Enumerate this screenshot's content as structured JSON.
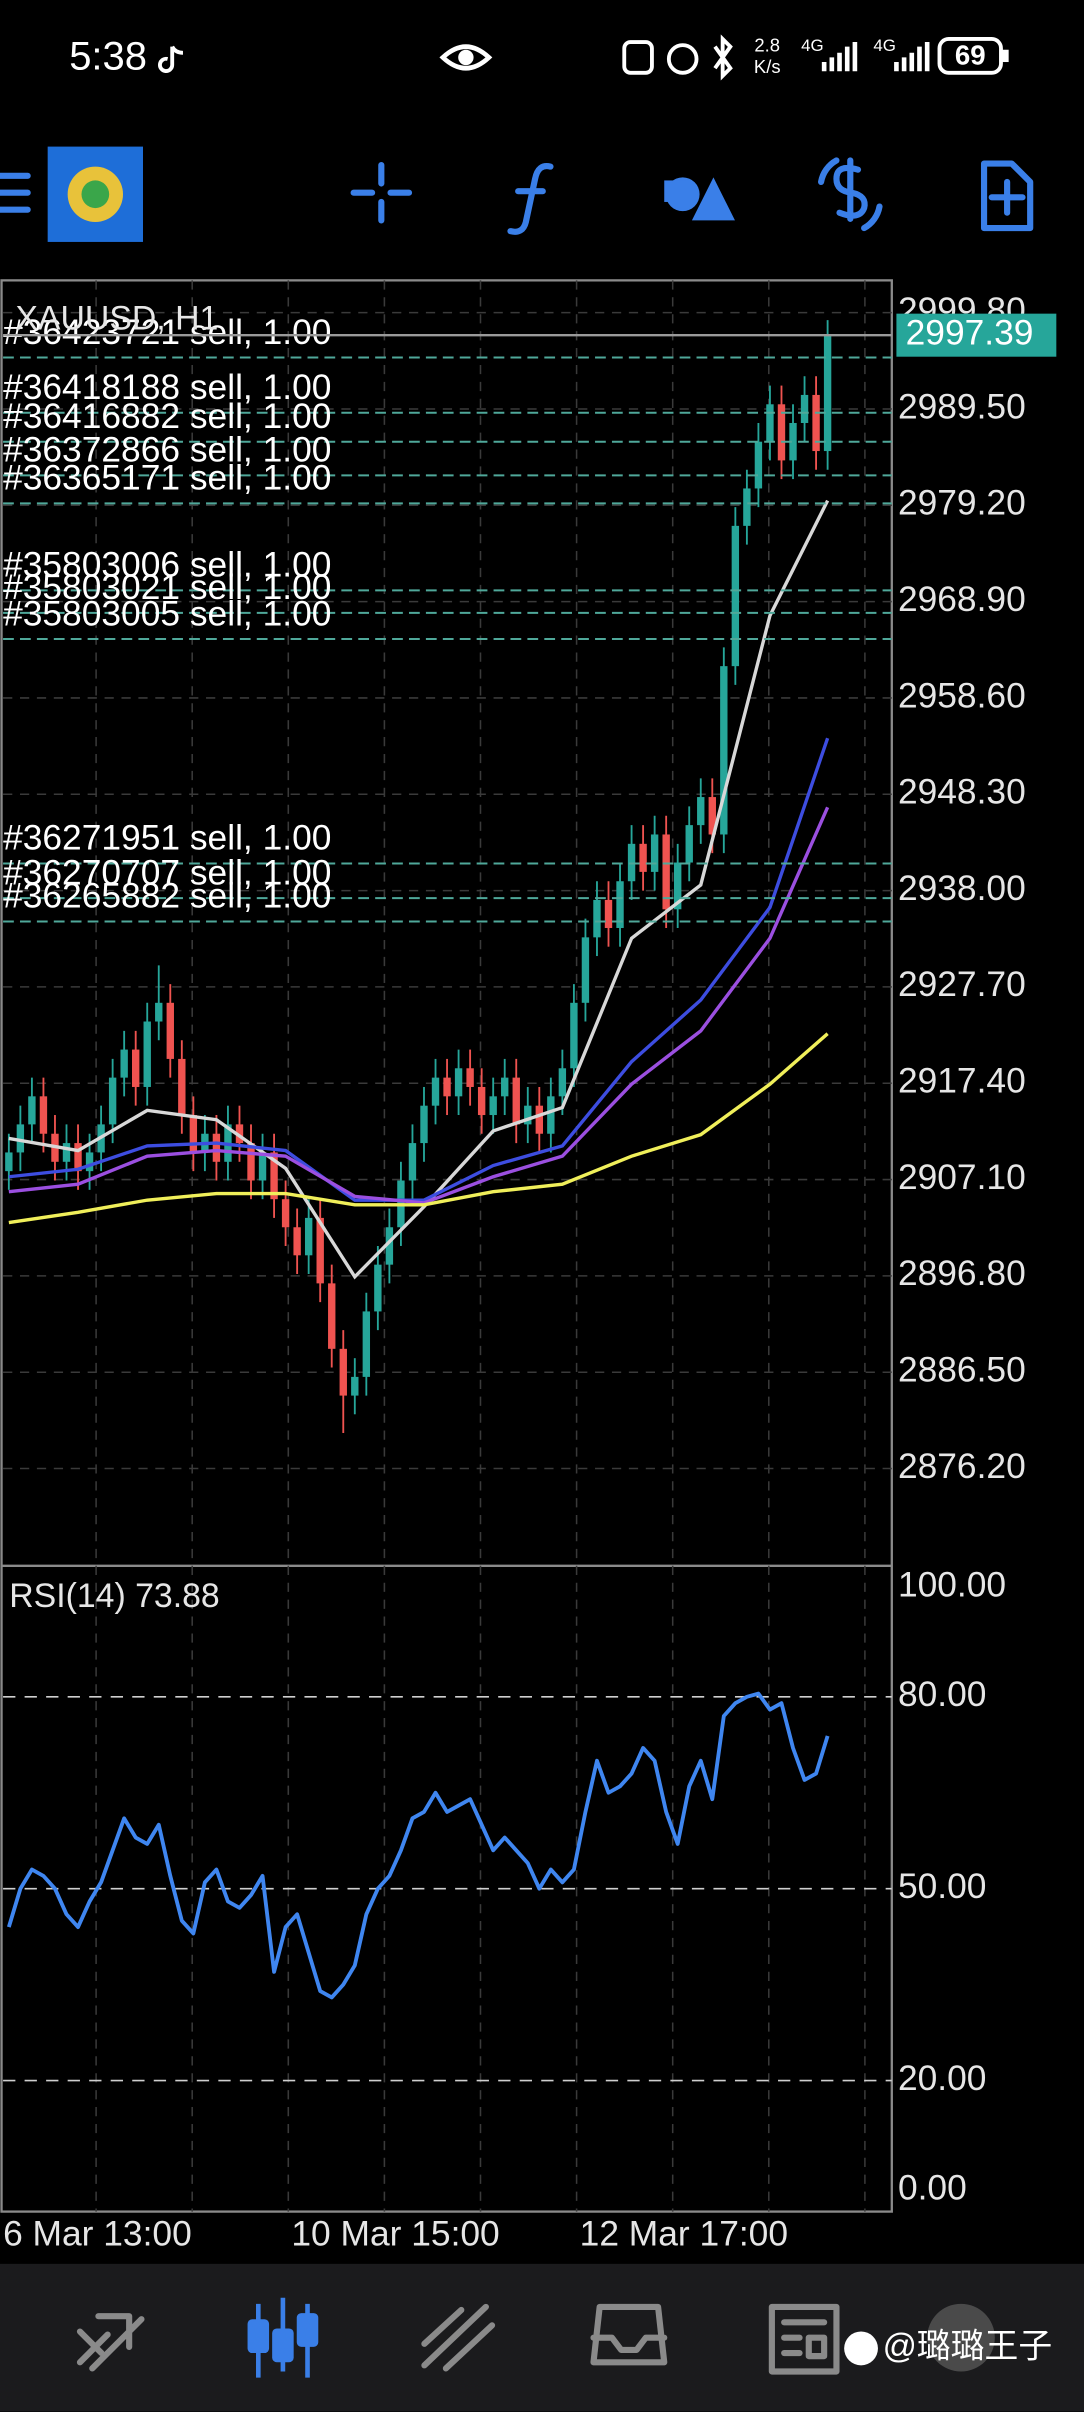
{
  "status_bar": {
    "time": "5:38",
    "speed": "2.8",
    "speed_unit": "K/s",
    "network_1": "4G",
    "network_2": "4G",
    "battery": "69"
  },
  "chart_data": [
    {
      "type": "candlestick",
      "title": "XAUUSD, H1",
      "categories": [
        "6 Mar 13:00",
        null,
        null,
        null,
        null,
        null,
        null,
        null,
        null,
        null,
        null,
        null,
        null,
        null,
        null,
        null,
        null,
        null,
        null,
        null,
        null,
        null,
        null,
        null,
        null,
        "10 Mar 15:00",
        null,
        null,
        null,
        null,
        null,
        null,
        null,
        null,
        null,
        null,
        null,
        null,
        null,
        null,
        null,
        null,
        null,
        null,
        null,
        null,
        null,
        null,
        null,
        null,
        "12 Mar 17:00",
        null,
        null,
        null,
        null,
        null,
        null,
        null,
        null,
        null,
        null,
        null,
        null,
        null,
        null,
        null,
        null,
        null,
        null,
        null,
        null,
        null
      ],
      "open": [
        2908,
        2910,
        2913,
        2916,
        2912,
        2909,
        2911,
        2908,
        2910,
        2913,
        2918,
        2921,
        2917,
        2924,
        2926,
        2920,
        2914,
        2910,
        2912,
        2909,
        2913,
        2911,
        2907,
        2910,
        2905,
        2902,
        2899,
        2903,
        2896,
        2889,
        2884,
        2886,
        2893,
        2898,
        2902,
        2907,
        2911,
        2915,
        2918,
        2916,
        2919,
        2917,
        2914,
        2916,
        2918,
        2913,
        2915,
        2912,
        2916,
        2919,
        2926,
        2933,
        2937,
        2934,
        2939,
        2943,
        2940,
        2944,
        2936,
        2941,
        2945,
        2948,
        2944,
        2962,
        2977,
        2981,
        2986,
        2990,
        2984,
        2988,
        2991,
        2985
      ],
      "high": [
        2912,
        2915,
        2918,
        2918,
        2914,
        2913,
        2913,
        2912,
        2915,
        2920,
        2923,
        2923,
        2926,
        2930,
        2928,
        2922,
        2916,
        2914,
        2914,
        2915,
        2915,
        2913,
        2912,
        2912,
        2907,
        2904,
        2905,
        2905,
        2898,
        2891,
        2888,
        2895,
        2900,
        2904,
        2909,
        2913,
        2917,
        2920,
        2920,
        2921,
        2921,
        2919,
        2918,
        2920,
        2920,
        2917,
        2917,
        2918,
        2921,
        2928,
        2935,
        2939,
        2939,
        2941,
        2945,
        2945,
        2946,
        2946,
        2943,
        2947,
        2950,
        2950,
        2964,
        2979,
        2983,
        2988,
        2992,
        2992,
        2990,
        2993,
        2993,
        2999
      ],
      "low": [
        2906,
        2908,
        2911,
        2910,
        2907,
        2907,
        2906,
        2906,
        2908,
        2911,
        2916,
        2915,
        2915,
        2922,
        2918,
        2912,
        2908,
        2908,
        2907,
        2907,
        2909,
        2905,
        2905,
        2903,
        2900,
        2897,
        2897,
        2894,
        2887,
        2880,
        2882,
        2884,
        2891,
        2896,
        2900,
        2905,
        2909,
        2913,
        2914,
        2914,
        2915,
        2912,
        2912,
        2914,
        2911,
        2911,
        2910,
        2910,
        2914,
        2917,
        2924,
        2931,
        2932,
        2932,
        2937,
        2938,
        2938,
        2934,
        2934,
        2939,
        2943,
        2942,
        2942,
        2960,
        2975,
        2979,
        2984,
        2982,
        2982,
        2986,
        2983,
        2983
      ],
      "close": [
        2910,
        2913,
        2916,
        2912,
        2909,
        2911,
        2908,
        2910,
        2913,
        2918,
        2921,
        2917,
        2924,
        2926,
        2920,
        2914,
        2910,
        2912,
        2909,
        2913,
        2911,
        2907,
        2910,
        2905,
        2902,
        2899,
        2903,
        2896,
        2889,
        2884,
        2886,
        2893,
        2898,
        2902,
        2907,
        2911,
        2915,
        2918,
        2916,
        2919,
        2917,
        2914,
        2916,
        2918,
        2913,
        2915,
        2912,
        2916,
        2919,
        2926,
        2933,
        2937,
        2934,
        2939,
        2943,
        2940,
        2944,
        2936,
        2941,
        2945,
        2948,
        2944,
        2962,
        2977,
        2981,
        2986,
        2990,
        2984,
        2988,
        2991,
        2985,
        2997.39
      ],
      "up_color": "#26a69a",
      "down_color": "#ef5350",
      "series": [
        {
          "color": "#d8d8d8",
          "x": [
            0,
            6,
            12,
            18,
            24,
            30,
            36,
            42,
            48,
            54,
            60,
            66,
            71
          ],
          "values": [
            2911.5,
            2910.2,
            2914.5,
            2913.5,
            2908.3,
            2896.7,
            2904.2,
            2912.3,
            2914.8,
            2932.9,
            2938.6,
            2967.4,
            2979.7
          ]
        },
        {
          "color": "#3d4de0",
          "x": [
            0,
            6,
            12,
            18,
            24,
            30,
            36,
            42,
            48,
            54,
            60,
            66,
            71
          ],
          "values": [
            2907.4,
            2908.2,
            2910.7,
            2911,
            2910.2,
            2904.9,
            2904.9,
            2908.6,
            2910.7,
            2919.7,
            2926.3,
            2936.2,
            2954.3
          ]
        },
        {
          "color": "#9b4fe0",
          "x": [
            0,
            6,
            12,
            18,
            24,
            30,
            36,
            42,
            48,
            54,
            60,
            66,
            71
          ],
          "values": [
            2905.8,
            2906.6,
            2909.6,
            2910.2,
            2909.6,
            2905.3,
            2904.6,
            2907.4,
            2909.6,
            2917.3,
            2923,
            2932.9,
            2946.9
          ]
        },
        {
          "color": "#f0ef5a",
          "x": [
            0,
            6,
            12,
            18,
            24,
            30,
            36,
            42,
            48,
            54,
            60,
            66,
            71
          ],
          "values": [
            2902.5,
            2903.6,
            2904.9,
            2905.6,
            2905.6,
            2904.4,
            2904.4,
            2905.8,
            2906.6,
            2909.6,
            2911.9,
            2917.3,
            2922.7
          ]
        }
      ],
      "current_price": 2997.39,
      "current_price_color": "#26a69a",
      "orders": [
        {
          "label": "#36423721 sell, 1.00",
          "price": 2995.0
        },
        {
          "label": "#36418188 sell, 1.00",
          "price": 2989.1
        },
        {
          "label": "#36416882 sell, 1.00",
          "price": 2986.0
        },
        {
          "label": "#36372866 sell, 1.00",
          "price": 2982.4
        },
        {
          "label": "#36365171 sell, 1.00",
          "price": 2979.4
        },
        {
          "label": "#35803006 sell, 1.00",
          "price": 2970.1
        },
        {
          "label": "#35803021 sell, 1.00",
          "price": 2967.7
        },
        {
          "label": "#35803005 sell, 1.00",
          "price": 2964.9
        },
        {
          "label": "#36271951 sell, 1.00",
          "price": 2940.9
        },
        {
          "label": "#36270707 sell, 1.00",
          "price": 2937.2
        },
        {
          "label": "#36265882 sell, 1.00",
          "price": 2934.7
        }
      ],
      "ylim": [
        2865.8,
        3003.25
      ],
      "yticks": [
        {
          "value": 2999.8,
          "label": "2999.80"
        },
        {
          "value": 2989.5,
          "label": "2989.50"
        },
        {
          "value": 2979.2,
          "label": "2979.20"
        },
        {
          "value": 2968.9,
          "label": "2968.90"
        },
        {
          "value": 2958.6,
          "label": "2958.60"
        },
        {
          "value": 2948.3,
          "label": "2948.30"
        },
        {
          "value": 2938,
          "label": "2938.00"
        },
        {
          "value": 2927.7,
          "label": "2927.70"
        },
        {
          "value": 2917.4,
          "label": "2917.40"
        },
        {
          "value": 2907.1,
          "label": "2907.10"
        },
        {
          "value": 2896.8,
          "label": "2896.80"
        },
        {
          "value": 2886.5,
          "label": "2886.50"
        },
        {
          "value": 2876.2,
          "label": "2876.20"
        }
      ],
      "grid": true
    },
    {
      "type": "line",
      "title": "RSI(14) 73.88",
      "color": "#3f86f0",
      "values": [
        44,
        50,
        53,
        52,
        50,
        46,
        44,
        48,
        51,
        56,
        61,
        58,
        57,
        60,
        52,
        45,
        43,
        51,
        53,
        48,
        47,
        49,
        52,
        37,
        44,
        46,
        40,
        34,
        33,
        35,
        38,
        46,
        50,
        52,
        56,
        61,
        62,
        65,
        62,
        63,
        64,
        60,
        56,
        58,
        56,
        54,
        50,
        53,
        51,
        53,
        62,
        70,
        65,
        66,
        68,
        72,
        70,
        62,
        57,
        66,
        70,
        64,
        77,
        79,
        80,
        80.5,
        78,
        79,
        72,
        67,
        68,
        73.88
      ],
      "ylim": [
        0,
        100
      ],
      "yticks": [
        {
          "value": 100,
          "label": "100.00"
        },
        {
          "value": 80,
          "label": "80.00"
        },
        {
          "value": 50,
          "label": "50.00"
        },
        {
          "value": 20,
          "label": "20.00"
        },
        {
          "value": 0,
          "label": "0.00"
        }
      ]
    }
  ],
  "watermark": "@璐璐王子"
}
